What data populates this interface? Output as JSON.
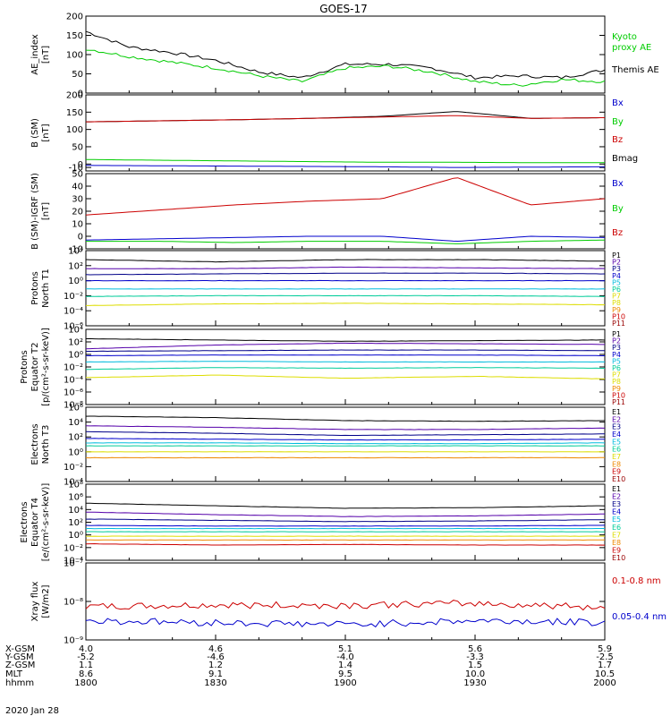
{
  "title": "GOES-17",
  "date": "2020 Jan 28",
  "colors": {
    "black": "#000000",
    "green": "#00cc00",
    "red": "#cc0000",
    "blue": "#0000cc",
    "purple": "#5500aa",
    "navy": "#000088",
    "cyan": "#00bbdd",
    "teal": "#00cc99",
    "yellow": "#dddd00",
    "orange": "#ee8800",
    "darkred": "#990000"
  },
  "ephemeris": {
    "row_labels": [
      "X-GSM",
      "Y-GSM",
      "Z-GSM",
      "MLT",
      "hhmm"
    ],
    "columns": [
      [
        "4.0",
        "-5.2",
        "1.1",
        "8.6",
        "1800"
      ],
      [
        "4.6",
        "-4.6",
        "1.2",
        "9.1",
        "1830"
      ],
      [
        "5.1",
        "-4.0",
        "1.4",
        "9.5",
        "1900"
      ],
      [
        "5.6",
        "-3.3",
        "1.5",
        "10.0",
        "1930"
      ],
      [
        "5.9",
        "-2.5",
        "1.7",
        "10.5",
        "2000"
      ]
    ]
  },
  "chart_data": [
    {
      "type": "line",
      "ylabel": [
        "AE_index",
        "[nT]"
      ],
      "ylim": [
        0,
        200
      ],
      "yticks": [
        "200",
        "150",
        "100",
        "50",
        "0"
      ],
      "x": [
        1800,
        1810,
        1820,
        1830,
        1840,
        1850,
        1900,
        1910,
        1920,
        1930,
        1940,
        1950,
        2000
      ],
      "legend": [
        {
          "label": "Kyoto",
          "color": "green"
        },
        {
          "label": "proxy AE",
          "color": "green"
        },
        {
          "label": "Themis AE",
          "color": "black"
        }
      ],
      "series": [
        {
          "color": "black",
          "values": [
            160,
            120,
            105,
            85,
            55,
            40,
            75,
            75,
            65,
            40,
            45,
            40,
            60
          ]
        },
        {
          "color": "green",
          "values": [
            115,
            95,
            80,
            65,
            45,
            30,
            65,
            70,
            55,
            30,
            20,
            35,
            30
          ]
        }
      ]
    },
    {
      "type": "line",
      "ylabel": [
        "B (SM)",
        "[nT]"
      ],
      "ylim": [
        -20,
        200
      ],
      "yticks": [
        "200",
        "150",
        "100",
        "50",
        "0",
        "-10"
      ],
      "x": [
        1800,
        1830,
        1900,
        1930,
        1945,
        1950,
        1955,
        2000
      ],
      "legend": [
        {
          "label": "Bx",
          "color": "blue"
        },
        {
          "label": "By",
          "color": "green"
        },
        {
          "label": "Bz",
          "color": "red"
        },
        {
          "label": "Bmag",
          "color": "black"
        }
      ],
      "series": [
        {
          "color": "black",
          "values": [
            122,
            125,
            128,
            132,
            138,
            152,
            132,
            134
          ]
        },
        {
          "color": "red",
          "values": [
            122,
            125,
            128,
            132,
            136,
            140,
            132,
            134
          ]
        },
        {
          "color": "green",
          "values": [
            13,
            11,
            9,
            7,
            5,
            5,
            4,
            4
          ]
        },
        {
          "color": "blue",
          "values": [
            -4,
            -5,
            -6,
            -7,
            -8,
            -10,
            -9,
            -8
          ]
        }
      ]
    },
    {
      "type": "line",
      "ylabel": [
        "B (SM)-IGRF (SM)",
        "[nT]"
      ],
      "ylim": [
        -10,
        50
      ],
      "yticks": [
        "50",
        "40",
        "30",
        "20",
        "10",
        "0",
        "-10"
      ],
      "x": [
        1800,
        1830,
        1900,
        1930,
        1945,
        1950,
        1953,
        2000
      ],
      "legend": [
        {
          "label": "Bx",
          "color": "blue"
        },
        {
          "label": "By",
          "color": "green"
        },
        {
          "label": "Bz",
          "color": "red"
        }
      ],
      "series": [
        {
          "color": "red",
          "values": [
            17,
            21,
            25,
            28,
            30,
            47,
            25,
            30
          ]
        },
        {
          "color": "blue",
          "values": [
            -3,
            -2,
            -1,
            0,
            0,
            -4,
            0,
            -1
          ]
        },
        {
          "color": "green",
          "values": [
            -4,
            -4,
            -5,
            -4,
            -4,
            -6,
            -4,
            -3
          ]
        }
      ]
    },
    {
      "type": "line",
      "log": true,
      "ylabel": [
        "Protons",
        "North T1"
      ],
      "yticks": [
        "10⁴",
        "10²",
        "10⁰",
        "10⁻²",
        "10⁻⁴",
        "10⁻⁶"
      ],
      "legend": [
        {
          "label": "P1",
          "color": "black"
        },
        {
          "label": "P2",
          "color": "purple"
        },
        {
          "label": "P3",
          "color": "navy"
        },
        {
          "label": "P4",
          "color": "blue"
        },
        {
          "label": "P5",
          "color": "cyan"
        },
        {
          "label": "P6",
          "color": "teal"
        },
        {
          "label": "P7",
          "color": "yellow"
        },
        {
          "label": "P8",
          "color": "yellow"
        },
        {
          "label": "P9",
          "color": "orange"
        },
        {
          "label": "P10",
          "color": "red"
        },
        {
          "label": "P11",
          "color": "darkred"
        }
      ],
      "series": [
        {
          "color": "black",
          "values": [
            2.8,
            2.5,
            2.8,
            2.8,
            2.6
          ]
        },
        {
          "color": "purple",
          "values": [
            1.6,
            1.6,
            1.8,
            1.7,
            1.6
          ]
        },
        {
          "color": "navy",
          "values": [
            0.8,
            0.9,
            1.0,
            1.0,
            0.9
          ]
        },
        {
          "color": "blue",
          "values": [
            0.0,
            0.0,
            0.0,
            0.0,
            0.0
          ]
        },
        {
          "color": "cyan",
          "values": [
            -1.1,
            -1.1,
            -1.1,
            -1.1,
            -1.1
          ]
        },
        {
          "color": "teal",
          "values": [
            -2.1,
            -2.0,
            -2.0,
            -2.0,
            -2.1
          ]
        },
        {
          "color": "yellow",
          "values": [
            -3.3,
            -3.1,
            -3.0,
            -3.1,
            -3.2
          ]
        }
      ]
    },
    {
      "type": "line",
      "log": true,
      "ylabel": [
        "Protons",
        "Equator T2",
        "[p/(cm²-s-sr-keV)]"
      ],
      "yticks": [
        "10⁴",
        "10²",
        "10⁰",
        "10⁻²",
        "10⁻⁴",
        "10⁻⁶",
        "10⁻⁸"
      ],
      "legend": [
        {
          "label": "P1",
          "color": "black"
        },
        {
          "label": "P2",
          "color": "purple"
        },
        {
          "label": "P3",
          "color": "navy"
        },
        {
          "label": "P4",
          "color": "blue"
        },
        {
          "label": "P5",
          "color": "cyan"
        },
        {
          "label": "P6",
          "color": "teal"
        },
        {
          "label": "P7",
          "color": "yellow"
        },
        {
          "label": "P8",
          "color": "yellow"
        },
        {
          "label": "P9",
          "color": "orange"
        },
        {
          "label": "P10",
          "color": "red"
        },
        {
          "label": "P11",
          "color": "darkred"
        }
      ],
      "series": [
        {
          "color": "black",
          "values": [
            2.5,
            2.3,
            2.1,
            2.2,
            2.3
          ]
        },
        {
          "color": "purple",
          "values": [
            0.9,
            1.5,
            1.8,
            1.7,
            1.6
          ]
        },
        {
          "color": "navy",
          "values": [
            0.5,
            0.6,
            0.7,
            0.7,
            0.6
          ]
        },
        {
          "color": "blue",
          "values": [
            -0.2,
            -0.1,
            -0.1,
            -0.1,
            -0.2
          ]
        },
        {
          "color": "cyan",
          "values": [
            -1.2,
            -1.1,
            -1.2,
            -1.2,
            -1.2
          ]
        },
        {
          "color": "teal",
          "values": [
            -2.4,
            -2.1,
            -2.2,
            -2.1,
            -2.2
          ]
        },
        {
          "color": "yellow",
          "values": [
            -3.7,
            -3.3,
            -3.8,
            -3.5,
            -3.9
          ]
        }
      ]
    },
    {
      "type": "line",
      "log": true,
      "ylabel": [
        "Electrons",
        "North T3"
      ],
      "yticks": [
        "10⁶",
        "10⁴",
        "10²",
        "10⁰",
        "10⁻²",
        "10⁻⁴"
      ],
      "legend": [
        {
          "label": "E1",
          "color": "black"
        },
        {
          "label": "E2",
          "color": "purple"
        },
        {
          "label": "E3",
          "color": "navy"
        },
        {
          "label": "E4",
          "color": "blue"
        },
        {
          "label": "E5",
          "color": "cyan"
        },
        {
          "label": "E6",
          "color": "teal"
        },
        {
          "label": "E7",
          "color": "yellow"
        },
        {
          "label": "E8",
          "color": "orange"
        },
        {
          "label": "E9",
          "color": "red"
        },
        {
          "label": "E10",
          "color": "darkred"
        }
      ],
      "series": [
        {
          "color": "black",
          "values": [
            4.8,
            4.6,
            4.2,
            4.1,
            4.2
          ]
        },
        {
          "color": "purple",
          "values": [
            3.5,
            3.3,
            3.0,
            3.0,
            3.2
          ]
        },
        {
          "color": "navy",
          "values": [
            2.7,
            2.5,
            2.2,
            2.3,
            2.4
          ]
        },
        {
          "color": "blue",
          "values": [
            1.8,
            1.7,
            1.6,
            1.6,
            1.7
          ]
        },
        {
          "color": "cyan",
          "values": [
            1.2,
            1.2,
            1.1,
            1.1,
            1.2
          ]
        },
        {
          "color": "teal",
          "values": [
            0.8,
            0.8,
            0.8,
            0.8,
            0.8
          ]
        },
        {
          "color": "yellow",
          "values": [
            0.0,
            0.0,
            0.0,
            0.0,
            0.0
          ]
        },
        {
          "color": "orange",
          "values": [
            -0.8,
            -0.8,
            -0.8,
            -0.8,
            -0.8
          ]
        }
      ]
    },
    {
      "type": "line",
      "log": true,
      "ylabel": [
        "Electrons",
        "Equator T4",
        "[e/(cm²-s-sr-keV)]"
      ],
      "yticks": [
        "10⁸",
        "10⁶",
        "10⁴",
        "10²",
        "10⁰",
        "10⁻²",
        "10⁻⁴"
      ],
      "legend": [
        {
          "label": "E1",
          "color": "black"
        },
        {
          "label": "E2",
          "color": "purple"
        },
        {
          "label": "E3",
          "color": "navy"
        },
        {
          "label": "E4",
          "color": "blue"
        },
        {
          "label": "E5",
          "color": "cyan"
        },
        {
          "label": "E6",
          "color": "teal"
        },
        {
          "label": "E7",
          "color": "yellow"
        },
        {
          "label": "E8",
          "color": "orange"
        },
        {
          "label": "E9",
          "color": "red"
        },
        {
          "label": "E10",
          "color": "darkred"
        }
      ],
      "series": [
        {
          "color": "black",
          "values": [
            5.0,
            4.6,
            4.2,
            4.3,
            4.6
          ]
        },
        {
          "color": "purple",
          "values": [
            3.6,
            3.2,
            2.9,
            3.0,
            3.3
          ]
        },
        {
          "color": "navy",
          "values": [
            2.5,
            2.3,
            2.1,
            2.2,
            2.4
          ]
        },
        {
          "color": "blue",
          "values": [
            1.5,
            1.4,
            1.4,
            1.4,
            1.5
          ]
        },
        {
          "color": "cyan",
          "values": [
            1.0,
            1.0,
            1.0,
            1.0,
            1.0
          ]
        },
        {
          "color": "teal",
          "values": [
            0.5,
            0.5,
            0.5,
            0.5,
            0.5
          ]
        },
        {
          "color": "yellow",
          "values": [
            -0.2,
            -0.2,
            -0.2,
            -0.2,
            -0.2
          ]
        },
        {
          "color": "orange",
          "values": [
            -0.8,
            -0.8,
            -0.8,
            -0.8,
            -0.8
          ]
        },
        {
          "color": "red",
          "values": [
            -1.4,
            -1.6,
            -1.5,
            -1.6,
            -1.6
          ]
        }
      ]
    },
    {
      "type": "line",
      "log": true,
      "ylabel": [
        "Xray flux",
        "[W/m2]"
      ],
      "yticks": [
        "10⁻⁷",
        "10⁻⁸",
        "10⁻⁹"
      ],
      "legend": [
        {
          "label": "0.1-0.8 nm",
          "color": "red"
        },
        {
          "label": "0.05-0.4 nm",
          "color": "blue"
        }
      ],
      "series": [
        {
          "color": "red",
          "values": [
            -8.15,
            -8.1,
            -8.1,
            -8.05,
            -8.15
          ]
        },
        {
          "color": "blue",
          "values": [
            -8.5,
            -8.55,
            -8.6,
            -8.5,
            -8.55
          ]
        }
      ]
    }
  ]
}
